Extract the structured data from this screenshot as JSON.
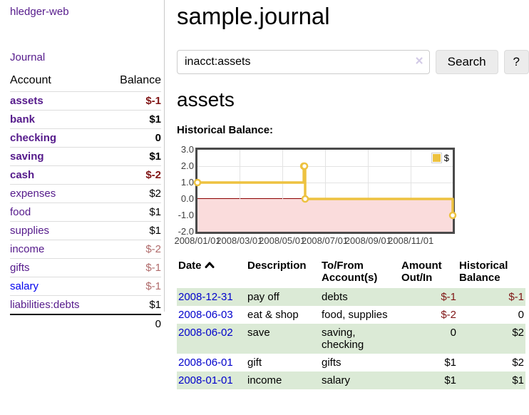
{
  "sidebar": {
    "brand": "hledger-web",
    "journal_link": "Journal",
    "accounts": {
      "headers": [
        "Account",
        "Balance"
      ],
      "rows": [
        {
          "name": "assets",
          "balance": "$-1"
        },
        {
          "name": "bank",
          "balance": "$1"
        },
        {
          "name": "checking",
          "balance": "0"
        },
        {
          "name": "saving",
          "balance": "$1"
        },
        {
          "name": "cash",
          "balance": "$-2"
        },
        {
          "name": "expenses",
          "balance": "$2"
        },
        {
          "name": "food",
          "balance": "$1"
        },
        {
          "name": "supplies",
          "balance": "$1"
        },
        {
          "name": "income",
          "balance": "$-2"
        },
        {
          "name": "gifts",
          "balance": "$-1"
        },
        {
          "name": "salary",
          "balance": "$-1"
        },
        {
          "name": "liabilities:debts",
          "balance": "$1"
        }
      ],
      "total": "0"
    }
  },
  "header": {
    "title": "sample.journal"
  },
  "search": {
    "value": "inacct:assets",
    "clear_icon": "×",
    "button_label": "Search",
    "help_label": "?"
  },
  "account_page": {
    "title": "assets",
    "chart_label": "Historical Balance:"
  },
  "chart_data": {
    "type": "line",
    "title": "Historical Balance",
    "series": [
      {
        "name": "$",
        "color": "#edc240",
        "step": true,
        "x": [
          "2008-01-01",
          "2008-06-01",
          "2008-06-02",
          "2008-06-03",
          "2008-12-31"
        ],
        "y": [
          1,
          2,
          2,
          0,
          -1
        ]
      }
    ],
    "xlim": [
      "2008-01-01",
      "2008-12-31"
    ],
    "ylim": [
      -2,
      3
    ],
    "yticks": [
      3.0,
      2.0,
      1.0,
      0.0,
      -1.0,
      -2.0
    ],
    "xticks": [
      "2008/01/01",
      "2008/03/01",
      "2008/05/01",
      "2008/07/01",
      "2008/09/01",
      "2008/11/01"
    ],
    "grid": true,
    "negative_region_color": "#fadcdc",
    "zero_line_color": "#8b0000",
    "legend_position": "top-right"
  },
  "register": {
    "headers": {
      "date": "Date",
      "description": "Description",
      "accounts": "To/From Account(s)",
      "amount": "Amount Out/In",
      "balance": "Historical Balance"
    },
    "rows": [
      {
        "date": "2008-12-31",
        "description": "pay off",
        "accounts": "debts",
        "amount": "$-1",
        "balance": "$-1"
      },
      {
        "date": "2008-06-03",
        "description": "eat & shop",
        "accounts": "food, supplies",
        "amount": "$-2",
        "balance": "0"
      },
      {
        "date": "2008-06-02",
        "description": "save",
        "accounts": "saving, checking",
        "amount": "0",
        "balance": "$2"
      },
      {
        "date": "2008-06-01",
        "description": "gift",
        "accounts": "gifts",
        "amount": "$1",
        "balance": "$2"
      },
      {
        "date": "2008-01-01",
        "description": "income",
        "accounts": "salary",
        "amount": "$1",
        "balance": "$1"
      }
    ]
  },
  "colors": {
    "link_purple": "#551a8b",
    "link_blue": "#0000cc",
    "negative_strong": "#801515",
    "negative_soft": "#b06b6b",
    "row_stripe_green": "#dbead6",
    "series_yellow": "#edc240",
    "negative_region_pink": "#fadcdc",
    "zero_line_red": "#8b0000"
  }
}
